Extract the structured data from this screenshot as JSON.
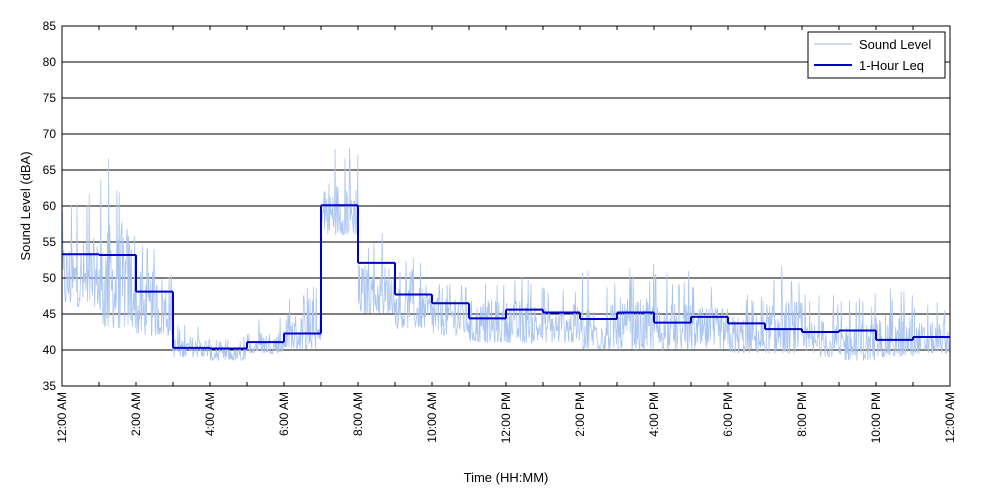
{
  "chart_data": {
    "type": "line",
    "title": "",
    "xlabel": "Time (HH:MM)",
    "ylabel": "Sound Level (dBA)",
    "ylim": [
      35,
      85
    ],
    "yticks": [
      35,
      40,
      45,
      50,
      55,
      60,
      65,
      70,
      75,
      80,
      85
    ],
    "xlim_hours": [
      0,
      24
    ],
    "xtick_labels": [
      "12:00 AM",
      "2:00 AM",
      "4:00 AM",
      "6:00 AM",
      "8:00 AM",
      "10:00 AM",
      "12:00 PM",
      "2:00 PM",
      "4:00 PM",
      "6:00 PM",
      "8:00 PM",
      "10:00 PM",
      "12:00 AM"
    ],
    "grid": "horizontal",
    "legend_position": "top-right",
    "colors": {
      "sound_level": "#aac4f0",
      "leq": "#0000cc"
    },
    "series": [
      {
        "name": "Sound Level",
        "style": "thin-light-blue",
        "approx_hourly_envelope": [
          {
            "hour": 0,
            "min": 46,
            "max": 62
          },
          {
            "hour": 1,
            "min": 43,
            "max": 68
          },
          {
            "hour": 2,
            "min": 42,
            "max": 57
          },
          {
            "hour": 3,
            "min": 39,
            "max": 44
          },
          {
            "hour": 4,
            "min": 38.5,
            "max": 42
          },
          {
            "hour": 5,
            "min": 39.5,
            "max": 45
          },
          {
            "hour": 6,
            "min": 40,
            "max": 49
          },
          {
            "hour": 7,
            "min": 56,
            "max": 69
          },
          {
            "hour": 8,
            "min": 45,
            "max": 57
          },
          {
            "hour": 9,
            "min": 43,
            "max": 53
          },
          {
            "hour": 10,
            "min": 42,
            "max": 54
          },
          {
            "hour": 11,
            "min": 41,
            "max": 51
          },
          {
            "hour": 12,
            "min": 41,
            "max": 51
          },
          {
            "hour": 13,
            "min": 41,
            "max": 50
          },
          {
            "hour": 14,
            "min": 40,
            "max": 51
          },
          {
            "hour": 15,
            "min": 40,
            "max": 52
          },
          {
            "hour": 16,
            "min": 40,
            "max": 51
          },
          {
            "hour": 17,
            "min": 40,
            "max": 50
          },
          {
            "hour": 18,
            "min": 39.5,
            "max": 49
          },
          {
            "hour": 19,
            "min": 39.5,
            "max": 52
          },
          {
            "hour": 20,
            "min": 39,
            "max": 48
          },
          {
            "hour": 21,
            "min": 38.5,
            "max": 48
          },
          {
            "hour": 22,
            "min": 39,
            "max": 49
          },
          {
            "hour": 23,
            "min": 39.5,
            "max": 47
          }
        ]
      },
      {
        "name": "1-Hour Leq",
        "style": "step",
        "x_hours": [
          0,
          1,
          2,
          3,
          4,
          5,
          6,
          7,
          8,
          9,
          10,
          11,
          12,
          13,
          14,
          15,
          16,
          17,
          18,
          19,
          20,
          21,
          22,
          23
        ],
        "values": [
          53.3,
          53.2,
          48.1,
          40.3,
          40.2,
          41.1,
          42.3,
          60.1,
          52.1,
          47.7,
          46.5,
          44.4,
          45.6,
          45.2,
          44.3,
          45.2,
          43.8,
          44.6,
          43.7,
          42.9,
          42.5,
          42.7,
          41.4,
          41.8
        ]
      }
    ]
  }
}
